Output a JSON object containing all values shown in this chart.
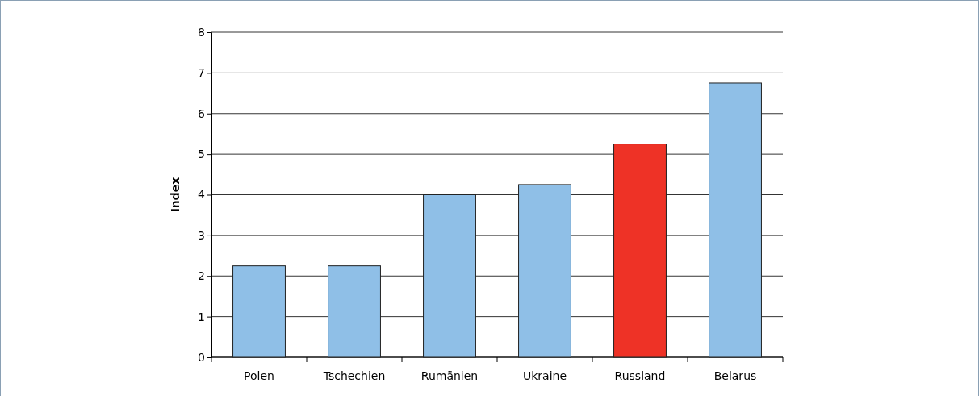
{
  "chart_data": {
    "type": "bar",
    "ylabel": "Index",
    "categories": [
      "Polen",
      "Tschechien",
      "Rumänien",
      "Ukraine",
      "Russland",
      "Belarus"
    ],
    "values": [
      2.25,
      2.25,
      4,
      4.25,
      5.25,
      6.75
    ],
    "colors": [
      "#8fbfe7",
      "#8fbfe7",
      "#8fbfe7",
      "#8fbfe7",
      "#ee3226",
      "#8fbfe7"
    ],
    "ylim": [
      0,
      8
    ],
    "yticks": [
      0,
      1,
      2,
      3,
      4,
      5,
      6,
      7,
      8
    ],
    "grid": "y"
  }
}
